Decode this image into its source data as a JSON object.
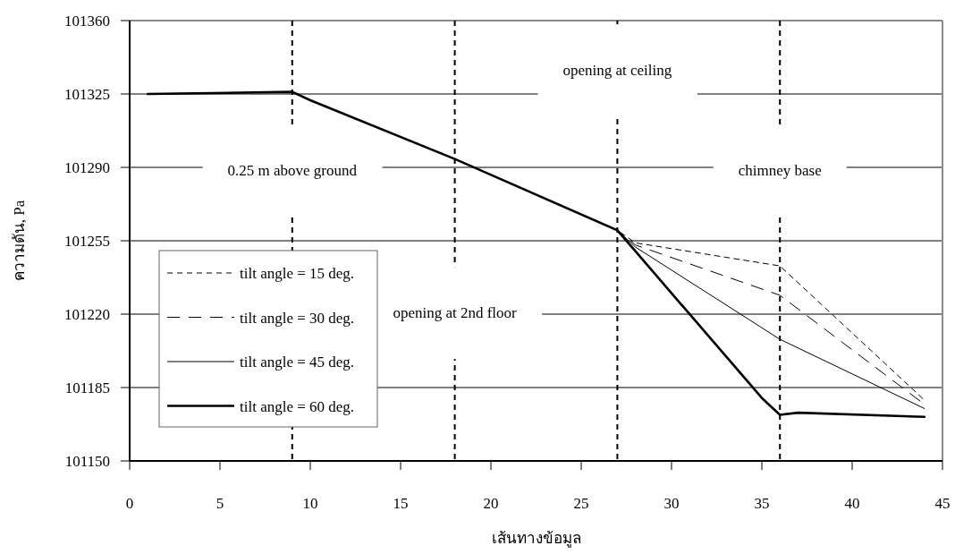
{
  "chart_data": {
    "type": "line",
    "xlabel": "เส้นทางข้อมูล",
    "ylabel": "ความดัน, Pa",
    "xlim": [
      0,
      45
    ],
    "xticks": [
      0,
      5,
      10,
      15,
      20,
      25,
      30,
      35,
      40,
      45
    ],
    "ylim": [
      101150,
      101360
    ],
    "yticks": [
      101150,
      101185,
      101220,
      101255,
      101290,
      101325,
      101360
    ],
    "grid": "y",
    "legend": "bottom left",
    "series": [
      {
        "name": "tilt angle = 15 deg.",
        "color": "#000000",
        "line_style": "dashed",
        "x": [
          1,
          9,
          10,
          18,
          27,
          28,
          36,
          44
        ],
        "values": [
          101325,
          101326,
          101322,
          101294,
          101260,
          101254,
          101243,
          101179
        ]
      },
      {
        "name": "tilt angle = 30 deg.",
        "color": "#000000",
        "line_style": "dashed",
        "x": [
          1,
          9,
          10,
          18,
          27,
          28,
          36,
          44
        ],
        "values": [
          101325,
          101326,
          101322,
          101294,
          101260,
          101253,
          101229,
          101177
        ]
      },
      {
        "name": "tilt angle = 45 deg.",
        "color": "#000000",
        "line_style": "solid",
        "x": [
          1,
          9,
          10,
          18,
          27,
          28,
          36,
          44
        ],
        "values": [
          101325,
          101326,
          101322,
          101294,
          101260,
          101252,
          101208,
          101175
        ]
      },
      {
        "name": "tilt angle = 60 deg.",
        "color": "#000000",
        "line_style": "solid",
        "x": [
          1,
          9,
          10,
          18,
          27,
          28,
          35,
          36,
          37,
          44
        ],
        "values": [
          101325,
          101326,
          101322,
          101294,
          101260,
          101250,
          101180,
          101172,
          101173,
          101171
        ]
      }
    ],
    "ref_lines": [
      {
        "axis": "x",
        "value": 9,
        "label": "0.25 m above ground",
        "line_style": "dashed"
      },
      {
        "axis": "x",
        "value": 18,
        "label": "opening at 2nd floor",
        "line_style": "dashed"
      },
      {
        "axis": "x",
        "value": 27,
        "label": "opening at ceiling",
        "line_style": "dashed"
      },
      {
        "axis": "x",
        "value": 36,
        "label": "chimney base",
        "line_style": "dashed"
      }
    ]
  }
}
